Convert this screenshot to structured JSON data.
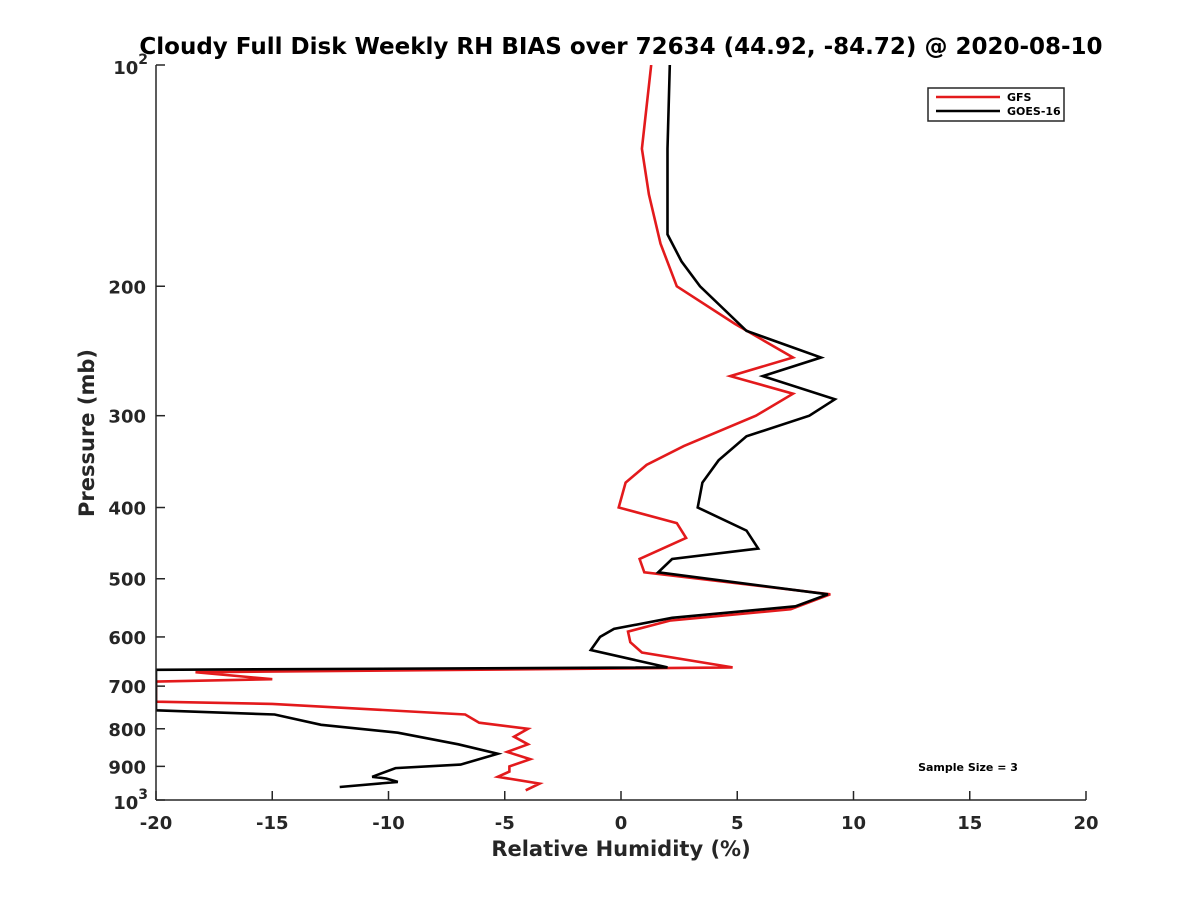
{
  "chart_data": {
    "type": "line",
    "title": "Cloudy Full Disk Weekly RH BIAS over 72634 (44.92, -84.72) @ 2020-08-10",
    "xlabel": "Relative Humidity (%)",
    "ylabel": "Pressure (mb)",
    "xlim": [
      -20,
      20
    ],
    "ylim": [
      100,
      1000
    ],
    "y_scale": "log",
    "y_reversed": true,
    "grid": false,
    "legend_position": "top-right",
    "x_ticks": [
      "-20",
      "-15",
      "-10",
      "-5",
      "0",
      "5",
      "10",
      "15",
      "20"
    ],
    "y_ticks": [
      {
        "value": 100,
        "base": "10",
        "exp": "2"
      },
      {
        "value": 200,
        "label": "200"
      },
      {
        "value": 300,
        "label": "300"
      },
      {
        "value": 400,
        "label": "400"
      },
      {
        "value": 500,
        "label": "500"
      },
      {
        "value": 600,
        "label": "600"
      },
      {
        "value": 700,
        "label": "700"
      },
      {
        "value": 800,
        "label": "800"
      },
      {
        "value": 900,
        "label": "900"
      },
      {
        "value": 1000,
        "base": "10",
        "exp": "3"
      }
    ],
    "annotation": "Sample Size = 3",
    "series": [
      {
        "name": "GFS",
        "color": "#e31a1c",
        "points": [
          [
            1.3,
            100
          ],
          [
            0.9,
            130
          ],
          [
            1.2,
            150
          ],
          [
            1.7,
            175
          ],
          [
            2.4,
            200
          ],
          [
            4.9,
            225
          ],
          [
            7.4,
            250
          ],
          [
            4.7,
            265
          ],
          [
            7.4,
            280
          ],
          [
            5.8,
            300
          ],
          [
            2.7,
            330
          ],
          [
            1.1,
            350
          ],
          [
            0.2,
            370
          ],
          [
            -0.1,
            400
          ],
          [
            2.4,
            420
          ],
          [
            2.8,
            440
          ],
          [
            0.8,
            470
          ],
          [
            1.0,
            490
          ],
          [
            9.0,
            525
          ],
          [
            7.3,
            550
          ],
          [
            2.1,
            570
          ],
          [
            0.3,
            590
          ],
          [
            0.4,
            610
          ],
          [
            0.9,
            630
          ],
          [
            4.8,
            660
          ],
          [
            -18.3,
            670
          ],
          [
            -15.0,
            685
          ],
          [
            -20.0,
            690
          ],
          [
            -20.0,
            735
          ],
          [
            -15.0,
            740
          ],
          [
            -6.7,
            765
          ],
          [
            -6.1,
            785
          ],
          [
            -4.0,
            800
          ],
          [
            -4.6,
            820
          ],
          [
            -4.0,
            840
          ],
          [
            -4.9,
            860
          ],
          [
            -3.9,
            880
          ],
          [
            -4.8,
            900
          ],
          [
            -4.8,
            915
          ],
          [
            -5.3,
            930
          ],
          [
            -3.5,
            950
          ],
          [
            -4.1,
            970
          ]
        ]
      },
      {
        "name": "GOES-16",
        "color": "#000000",
        "points": [
          [
            2.1,
            100
          ],
          [
            2.0,
            130
          ],
          [
            2.0,
            150
          ],
          [
            2.0,
            170
          ],
          [
            2.6,
            185
          ],
          [
            3.4,
            200
          ],
          [
            5.4,
            230
          ],
          [
            8.6,
            250
          ],
          [
            6.1,
            265
          ],
          [
            9.2,
            285
          ],
          [
            8.1,
            300
          ],
          [
            5.4,
            320
          ],
          [
            4.2,
            345
          ],
          [
            3.5,
            370
          ],
          [
            3.3,
            400
          ],
          [
            5.4,
            430
          ],
          [
            5.9,
            455
          ],
          [
            2.2,
            470
          ],
          [
            1.6,
            490
          ],
          [
            8.9,
            525
          ],
          [
            7.5,
            545
          ],
          [
            2.2,
            565
          ],
          [
            -0.3,
            585
          ],
          [
            -0.9,
            600
          ],
          [
            -1.3,
            625
          ],
          [
            2.0,
            660
          ],
          [
            -20.0,
            665
          ],
          [
            -20.0,
            755
          ],
          [
            -14.9,
            765
          ],
          [
            -12.9,
            790
          ],
          [
            -9.6,
            810
          ],
          [
            -7.0,
            840
          ],
          [
            -5.3,
            865
          ],
          [
            -6.9,
            895
          ],
          [
            -9.7,
            905
          ],
          [
            -10.7,
            930
          ],
          [
            -10.1,
            935
          ],
          [
            -9.6,
            945
          ],
          [
            -12.1,
            960
          ]
        ]
      }
    ]
  }
}
